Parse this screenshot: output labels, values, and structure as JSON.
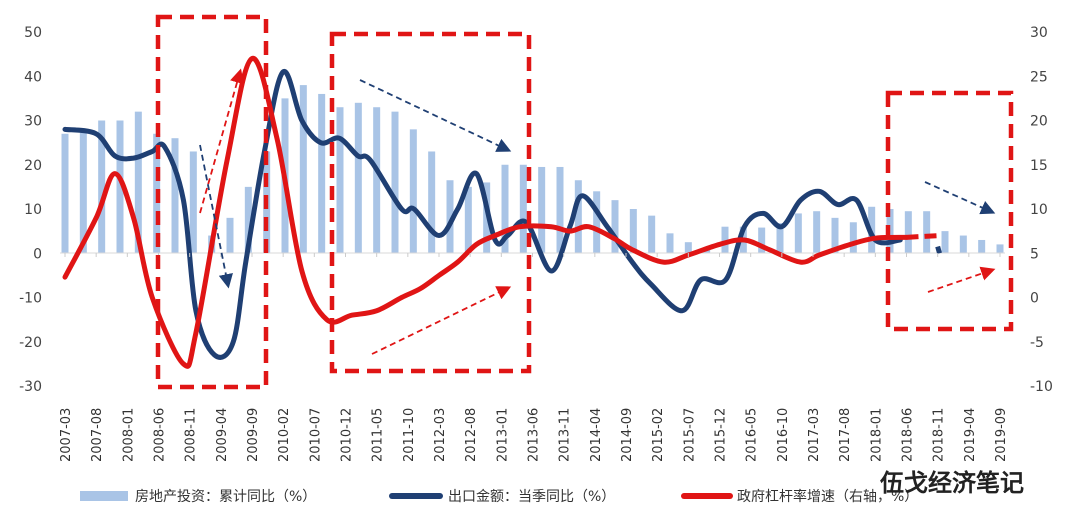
{
  "chart_data": {
    "type": "bar+line",
    "title": "",
    "left_axis": {
      "ylim": [
        -30,
        50
      ],
      "ticks": [
        50,
        40,
        30,
        20,
        10,
        0,
        -10,
        -20,
        -30
      ]
    },
    "right_axis": {
      "ylim": [
        -10,
        30
      ],
      "ticks": [
        30,
        25,
        20,
        15,
        10,
        5,
        0,
        -5,
        -10
      ]
    },
    "x_tick_labels": [
      "2007-03",
      "2007-08",
      "2008-01",
      "2008-06",
      "2008-11",
      "2009-04",
      "2009-09",
      "2010-02",
      "2010-07",
      "2010-12",
      "2011-05",
      "2011-10",
      "2012-03",
      "2012-08",
      "2013-01",
      "2013-06",
      "2013-11",
      "2014-04",
      "2014-09",
      "2015-02",
      "2015-07",
      "2015-12",
      "2016-05",
      "2016-10",
      "2017-03",
      "2017-08",
      "2018-01",
      "2018-06",
      "2018-11",
      "2019-04",
      "2019-09"
    ],
    "months_span": [
      0,
      150
    ],
    "series": [
      {
        "name": "房地产投资：累计同比（%）",
        "kind": "bar",
        "axis": "left",
        "color": "#a9c4e6",
        "month_step": 2.8,
        "values": [
          27,
          28,
          30,
          30,
          32,
          27,
          26,
          23,
          4,
          8,
          15,
          23,
          35,
          38,
          36,
          33,
          34,
          33,
          32,
          28,
          23,
          16.5,
          15,
          16,
          20,
          20,
          19.5,
          19.5,
          16.5,
          14,
          12,
          10,
          8.5,
          4.5,
          2.5,
          1,
          6,
          6,
          5.8,
          6.8,
          9,
          9.5,
          8,
          7,
          10.5,
          10,
          9.5,
          9.5,
          5,
          4,
          3,
          2
        ]
      },
      {
        "name": "出口金额：当季同比（%）",
        "kind": "line",
        "axis": "left",
        "color": "#1f3f73",
        "dashed_after_month": 135,
        "points": [
          [
            0,
            28
          ],
          [
            5,
            27
          ],
          [
            8,
            22
          ],
          [
            11,
            21.5
          ],
          [
            14,
            23
          ],
          [
            16,
            24
          ],
          [
            19,
            12
          ],
          [
            21,
            -13
          ],
          [
            24,
            -23
          ],
          [
            27,
            -20
          ],
          [
            29,
            -2
          ],
          [
            32,
            23
          ],
          [
            35,
            41
          ],
          [
            38,
            30
          ],
          [
            41,
            25
          ],
          [
            44,
            26
          ],
          [
            47,
            22
          ],
          [
            49,
            21
          ],
          [
            54,
            10
          ],
          [
            56,
            10
          ],
          [
            60,
            4
          ],
          [
            63,
            10
          ],
          [
            66,
            18
          ],
          [
            69,
            3
          ],
          [
            71,
            4
          ],
          [
            74,
            7
          ],
          [
            78,
            -4
          ],
          [
            81,
            6
          ],
          [
            83,
            13
          ],
          [
            87,
            6
          ],
          [
            91,
            -2
          ],
          [
            94,
            -7
          ],
          [
            99,
            -13
          ],
          [
            102,
            -6
          ],
          [
            106,
            -6
          ],
          [
            109,
            6
          ],
          [
            112,
            9
          ],
          [
            115,
            6
          ],
          [
            118,
            12
          ],
          [
            121,
            14
          ],
          [
            124,
            11
          ],
          [
            127,
            12
          ],
          [
            130,
            3
          ],
          [
            134,
            3
          ],
          [
            140,
            1.5
          ],
          [
            140.3,
            0
          ]
        ]
      },
      {
        "name": "政府杠杆率增速（右轴，%）",
        "kind": "line",
        "axis": "right",
        "color": "#e01515",
        "dashed_after_month": 135,
        "points": [
          [
            0,
            2.3
          ],
          [
            5,
            9
          ],
          [
            8,
            14
          ],
          [
            11,
            9
          ],
          [
            14,
            0
          ],
          [
            19,
            -7.5
          ],
          [
            21,
            -4
          ],
          [
            26,
            15.5
          ],
          [
            30,
            27
          ],
          [
            34,
            18
          ],
          [
            38,
            3
          ],
          [
            42,
            -2.5
          ],
          [
            46,
            -2
          ],
          [
            50,
            -1.5
          ],
          [
            54,
            0
          ],
          [
            57,
            1
          ],
          [
            60,
            2.5
          ],
          [
            63,
            4
          ],
          [
            66,
            6
          ],
          [
            69,
            7
          ],
          [
            73,
            8
          ],
          [
            78,
            8
          ],
          [
            81,
            7.5
          ],
          [
            84,
            8
          ],
          [
            88,
            6.7
          ],
          [
            91,
            5.4
          ],
          [
            96,
            4
          ],
          [
            100,
            4.8
          ],
          [
            105,
            6
          ],
          [
            109,
            6.5
          ],
          [
            113,
            5.4
          ],
          [
            118,
            4
          ],
          [
            121,
            4.8
          ],
          [
            126,
            6
          ],
          [
            130,
            6.7
          ],
          [
            135,
            6.8
          ],
          [
            140.3,
            7
          ]
        ]
      }
    ],
    "legend_position": "bottom",
    "grid": false,
    "watermark": "伍戈经济笔记"
  }
}
